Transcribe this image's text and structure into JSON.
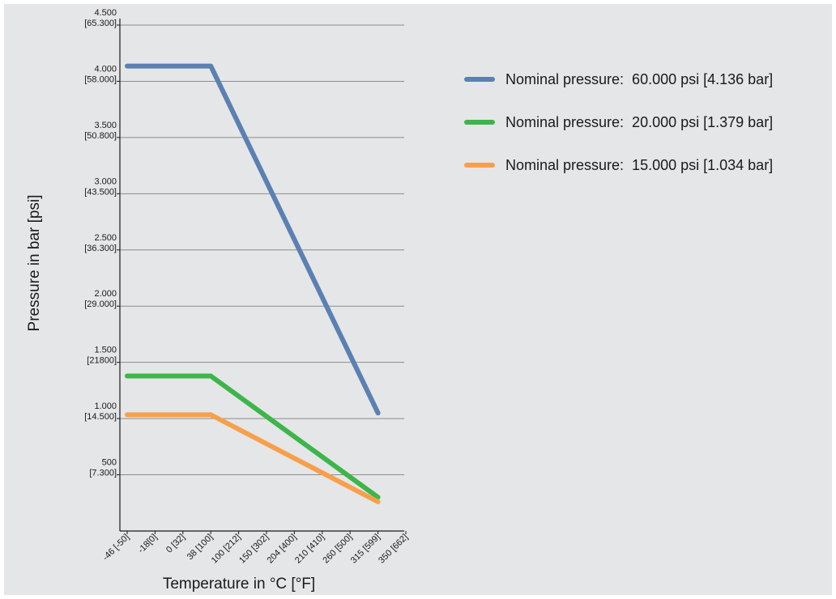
{
  "chart_data": {
    "type": "line",
    "xlabel": "Temperature in °C [°F]",
    "ylabel": "Pressure in bar [psi]",
    "x_ticks": [
      "-46 [-50]",
      "-18[0]",
      "0 [32]",
      "38 [100]",
      "100 [212]",
      "150 [302]",
      "204 [400]",
      "210 [410]",
      "260 [500]",
      "315 [599]",
      "350 [662]"
    ],
    "y_ticks": [
      {
        "value": 500,
        "line1": "500",
        "line2": "[7.300]"
      },
      {
        "value": 1000,
        "line1": "1.000",
        "line2": "[14.500]"
      },
      {
        "value": 1500,
        "line1": "1.500",
        "line2": "[21800]"
      },
      {
        "value": 2000,
        "line1": "2.000",
        "line2": "[29.000]"
      },
      {
        "value": 2500,
        "line1": "2.500",
        "line2": "[36.300]"
      },
      {
        "value": 3000,
        "line1": "3.000",
        "line2": "[43.500]"
      },
      {
        "value": 3500,
        "line1": "3.500",
        "line2": "[50.800]"
      },
      {
        "value": 4000,
        "line1": "4.000",
        "line2": "[58.000]"
      },
      {
        "value": 4500,
        "line1": "4.500",
        "line2": "[65.300]"
      }
    ],
    "ylim": [
      0,
      4500
    ],
    "grid": true,
    "legend_position": "top-right",
    "series": [
      {
        "name": "Nominal pressure: 60.000 psi [4.136 bar]",
        "color": "#5b80b2",
        "points": [
          {
            "x": "-46 [-50]",
            "y": 4136
          },
          {
            "x": "38 [100]",
            "y": 4136
          },
          {
            "x": "315 [599]",
            "y": 1050
          }
        ]
      },
      {
        "name": "Nominal pressure: 20.000 psi [1.379 bar]",
        "color": "#3db54a",
        "points": [
          {
            "x": "-46 [-50]",
            "y": 1379
          },
          {
            "x": "38 [100]",
            "y": 1379
          },
          {
            "x": "315 [599]",
            "y": 300
          }
        ]
      },
      {
        "name": "Nominal pressure: 15.000 psi [1.034 bar]",
        "color": "#f7a04b",
        "points": [
          {
            "x": "-46 [-50]",
            "y": 1034
          },
          {
            "x": "38 [100]",
            "y": 1034
          },
          {
            "x": "315 [599]",
            "y": 260
          }
        ]
      }
    ]
  },
  "legend": {
    "items": [
      {
        "label": "Nominal pressure:  60.000 psi [4.136 bar]",
        "color": "#5b80b2"
      },
      {
        "label": "Nominal pressure:  20.000 psi [1.379 bar]",
        "color": "#3db54a"
      },
      {
        "label": "Nominal pressure:  15.000 psi [1.034 bar]",
        "color": "#f7a04b"
      }
    ]
  }
}
